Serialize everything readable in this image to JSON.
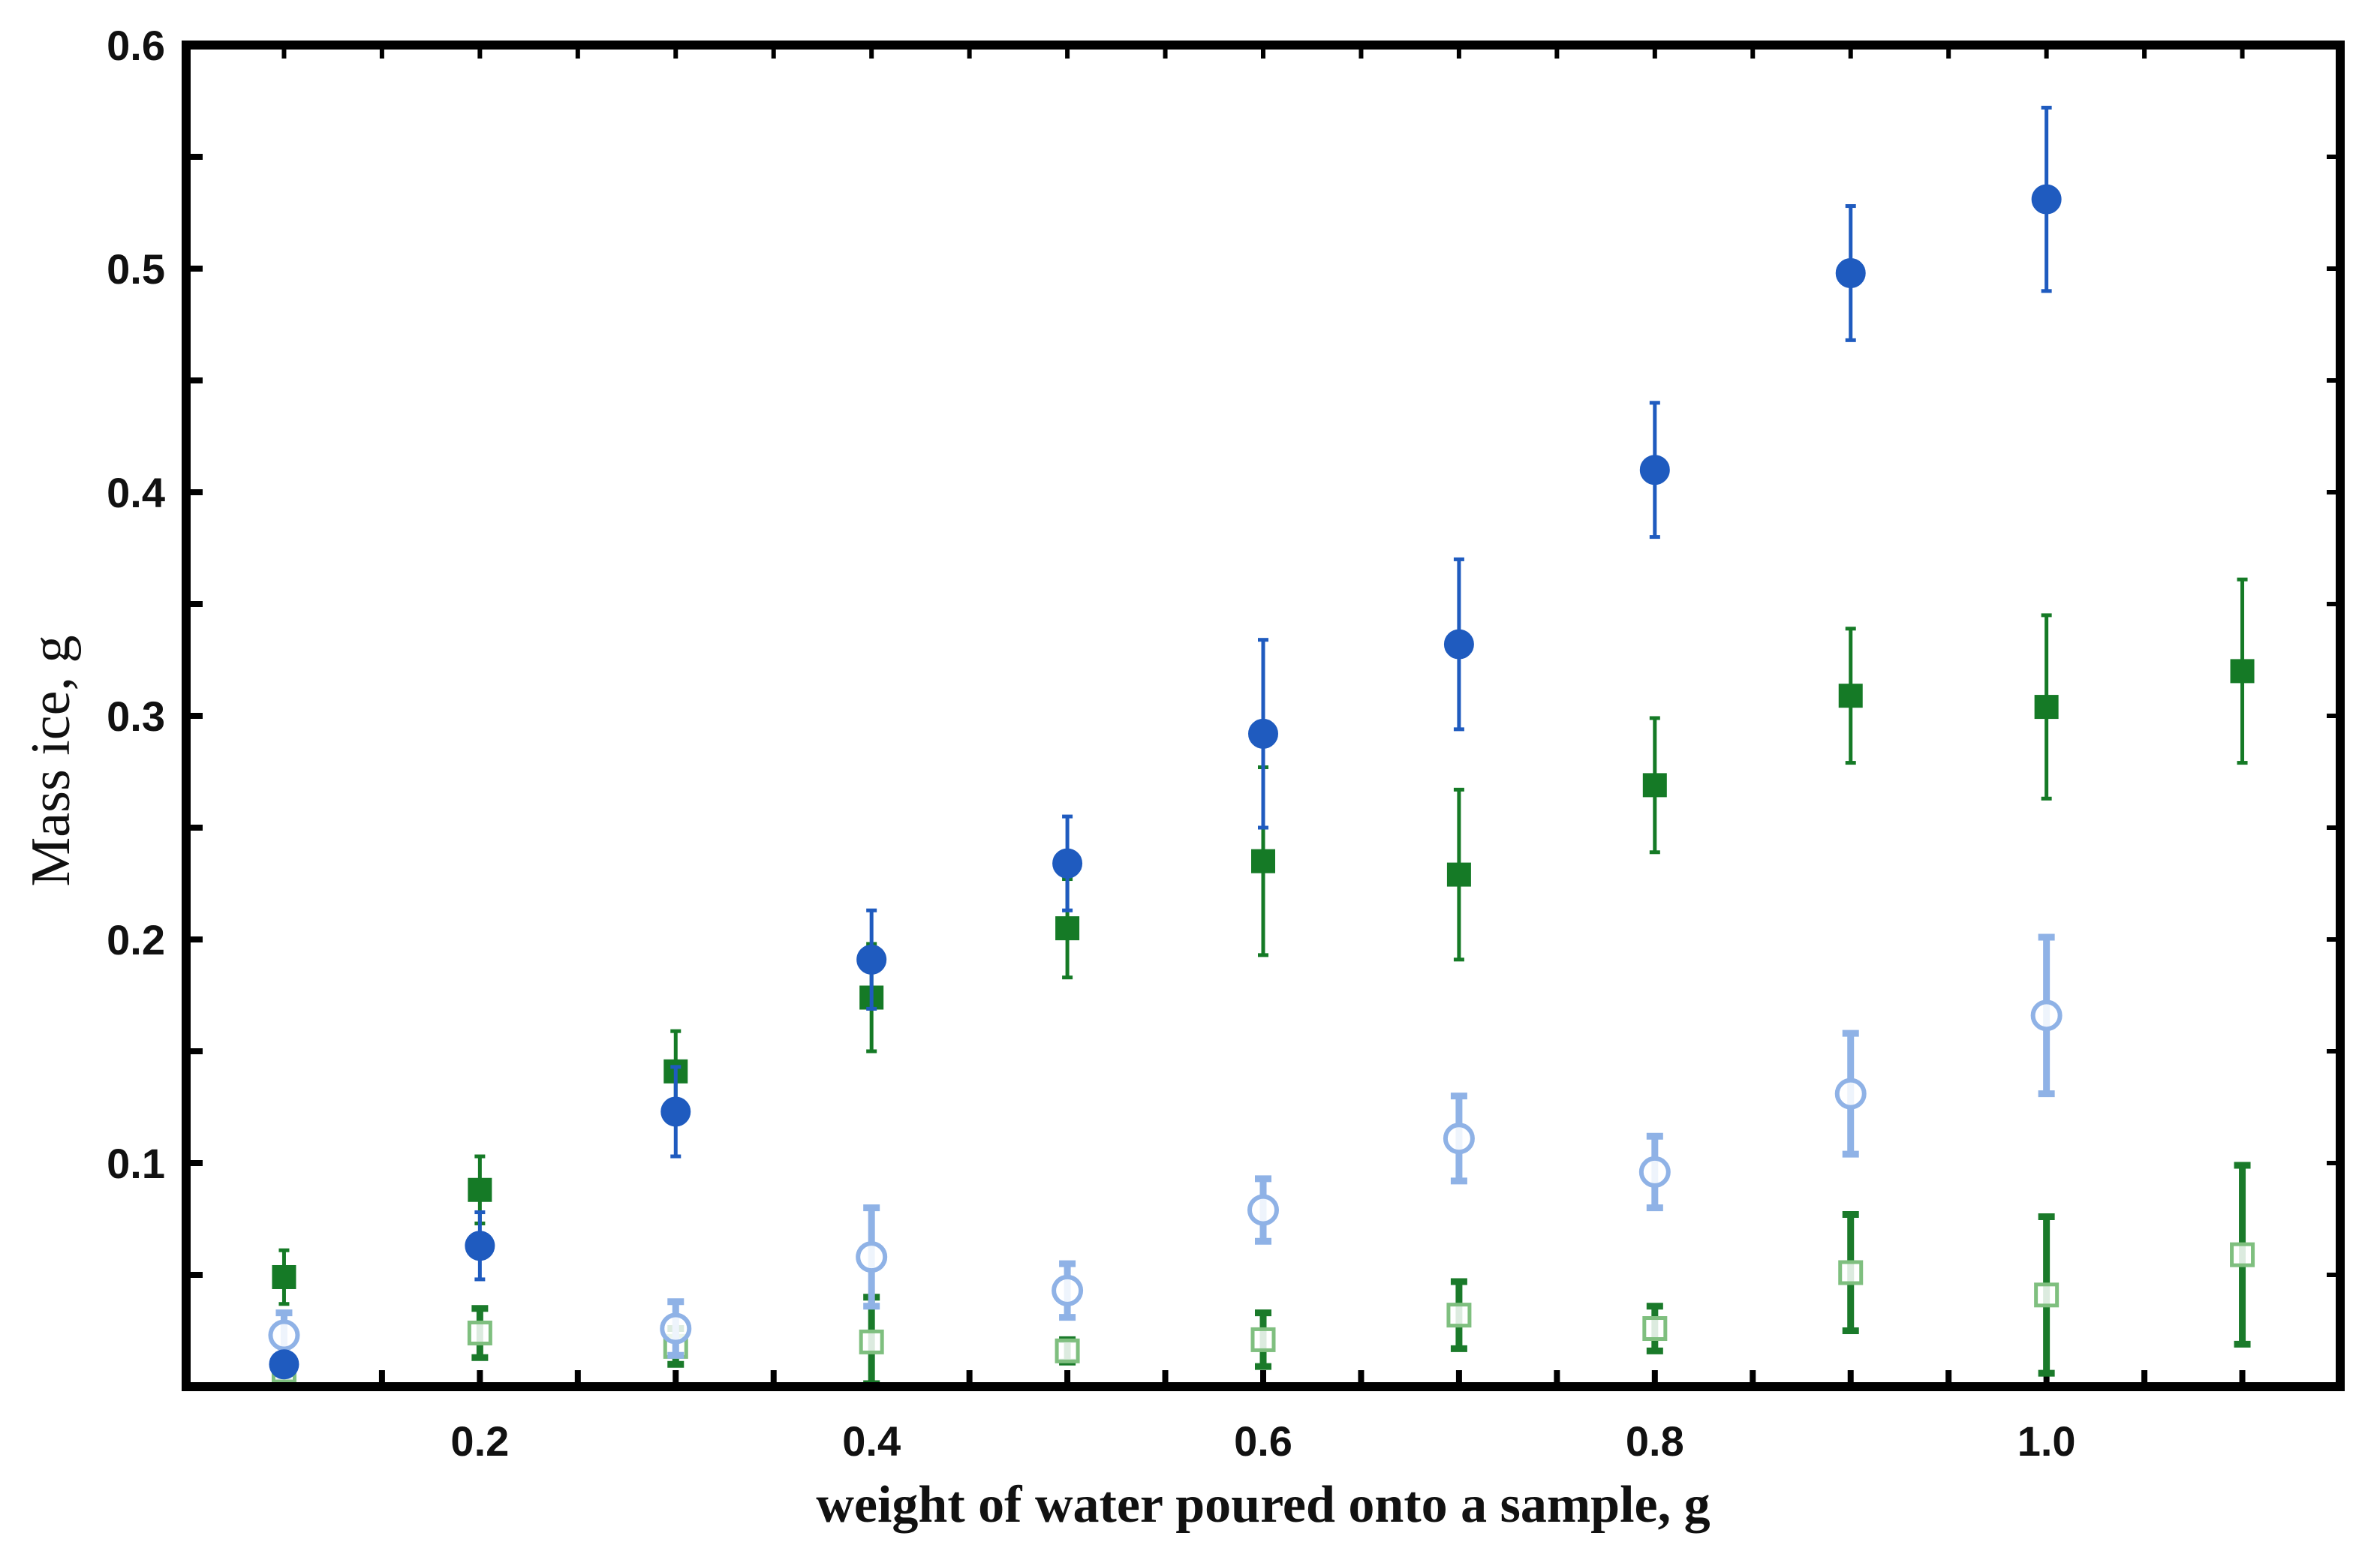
{
  "chart_data": {
    "type": "scatter",
    "title": "",
    "xlabel": "weight of water poured onto a sample, g",
    "ylabel": "Mass ice, g",
    "xlim": [
      0.05,
      1.15
    ],
    "ylim": [
      0.0,
      0.6
    ],
    "x_ticks": [
      {
        "value": 0.2,
        "label": "0.2"
      },
      {
        "value": 0.4,
        "label": "0.4"
      },
      {
        "value": 0.6,
        "label": "0.6"
      },
      {
        "value": 0.8,
        "label": "0.8"
      },
      {
        "value": 1.0,
        "label": "1.0"
      }
    ],
    "y_ticks": [
      {
        "value": 0.1,
        "label": "0.1"
      },
      {
        "value": 0.2,
        "label": "0.2"
      },
      {
        "value": 0.3,
        "label": "0.3"
      },
      {
        "value": 0.4,
        "label": "0.4"
      },
      {
        "value": 0.5,
        "label": "0.5"
      },
      {
        "value": 0.6,
        "label": "0.6"
      }
    ],
    "grid": false,
    "legend": "none",
    "series": [
      {
        "name": "blue filled circles",
        "marker": "circle",
        "filled": true,
        "color": "#1f5bbf",
        "x": [
          0.1,
          0.2,
          0.3,
          0.4,
          0.5,
          0.6,
          0.7,
          0.8,
          0.9,
          1.0
        ],
        "y": [
          0.01,
          0.063,
          0.123,
          0.191,
          0.234,
          0.292,
          0.332,
          0.41,
          0.498,
          0.531
        ],
        "err": [
          0.005,
          0.015,
          0.02,
          0.022,
          0.021,
          0.042,
          0.038,
          0.03,
          0.03,
          0.041
        ]
      },
      {
        "name": "green filled squares",
        "marker": "square",
        "filled": true,
        "color": "#157a26",
        "x": [
          0.1,
          0.2,
          0.3,
          0.4,
          0.5,
          0.6,
          0.7,
          0.8,
          0.9,
          1.0,
          1.1
        ],
        "y": [
          0.049,
          0.088,
          0.141,
          0.174,
          0.205,
          0.235,
          0.229,
          0.269,
          0.309,
          0.304,
          0.32
        ],
        "err": [
          0.012,
          0.015,
          0.018,
          0.024,
          0.022,
          0.042,
          0.038,
          0.03,
          0.03,
          0.041,
          0.041
        ]
      },
      {
        "name": "light blue open circles",
        "marker": "circle",
        "filled": false,
        "color": "#8fb2e6",
        "x": [
          0.1,
          0.3,
          0.4,
          0.5,
          0.6,
          0.7,
          0.8,
          0.9,
          1.0
        ],
        "y": [
          0.023,
          0.026,
          0.058,
          0.043,
          0.079,
          0.111,
          0.096,
          0.131,
          0.166
        ],
        "err": [
          0.01,
          0.012,
          0.022,
          0.012,
          0.014,
          0.019,
          0.016,
          0.027,
          0.035
        ]
      },
      {
        "name": "green open squares",
        "marker": "square",
        "filled": false,
        "color": "#1a7a2a",
        "x": [
          0.1,
          0.2,
          0.3,
          0.4,
          0.5,
          0.6,
          0.7,
          0.8,
          0.9,
          1.0,
          1.1
        ],
        "y": [
          0.007,
          0.024,
          0.018,
          0.02,
          0.016,
          0.021,
          0.032,
          0.026,
          0.051,
          0.041,
          0.059
        ],
        "err": [
          0.005,
          0.011,
          0.008,
          0.02,
          0.005,
          0.012,
          0.015,
          0.01,
          0.026,
          0.035,
          0.04
        ]
      }
    ]
  }
}
